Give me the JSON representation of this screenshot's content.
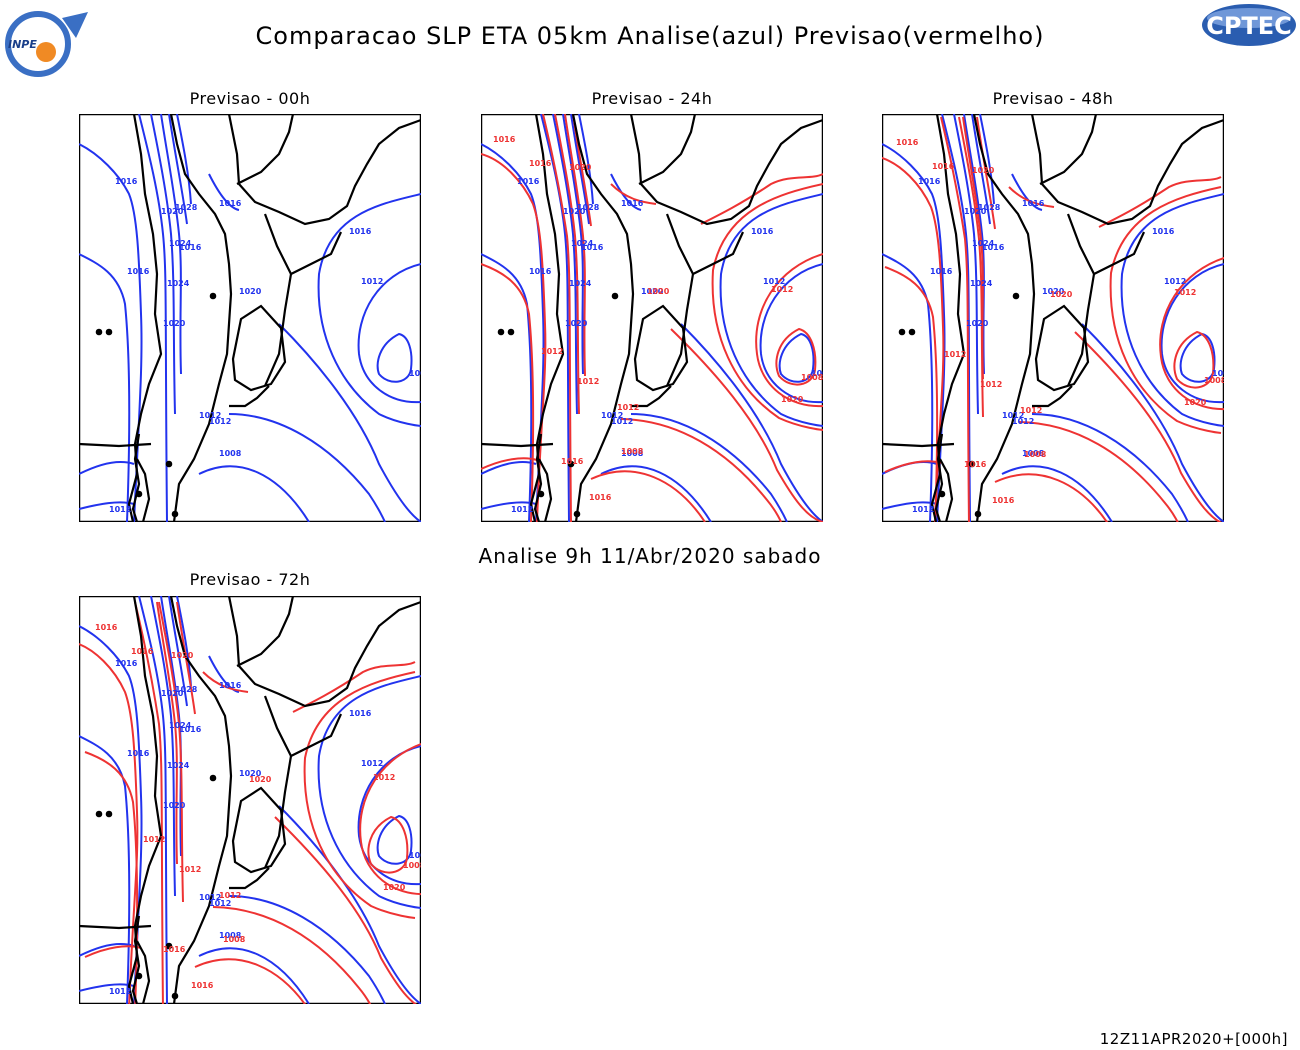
{
  "header": {
    "title": "Comparacao SLP ETA 05km Analise(azul) Previsao(vermelho)",
    "logo_left_text": "INPE",
    "logo_right_text": "CPTEC"
  },
  "subtitle": "Analise 9h 11/Abr/2020 sabado",
  "footer": "12Z11APR2020+[000h]",
  "colors": {
    "analysis": "#2233ee",
    "forecast": "#ee3333",
    "coastline": "#000000"
  },
  "panels": [
    {
      "id": "00h",
      "title": "Previsao - 00h",
      "show_forecast": false
    },
    {
      "id": "24h",
      "title": "Previsao - 24h",
      "show_forecast": true
    },
    {
      "id": "48h",
      "title": "Previsao - 48h",
      "show_forecast": true
    },
    {
      "id": "72h",
      "title": "Previsao - 72h",
      "show_forecast": true
    }
  ],
  "contour_labels": {
    "analysis": [
      "1016",
      "1016",
      "1020",
      "1016",
      "1016",
      "1012",
      "1024",
      "1028",
      "1020",
      "1012",
      "1008",
      "1020",
      "1012",
      "1008",
      "1012",
      "1016",
      "1024"
    ],
    "forecast": [
      "1016",
      "1016",
      "1020",
      "1012",
      "1008",
      "1020",
      "1016",
      "1012",
      "1016",
      "1020",
      "1012",
      "1008",
      "1012"
    ]
  }
}
